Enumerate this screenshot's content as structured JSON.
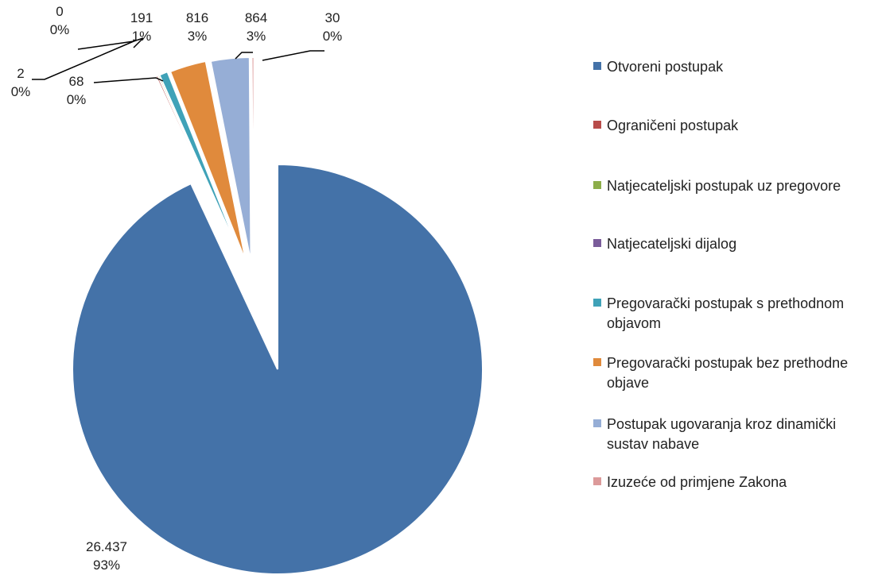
{
  "chart_data": {
    "type": "pie",
    "exploded": true,
    "legend_position": "right",
    "categories": [
      "Otvoreni postupak",
      "Ograničeni postupak",
      "Natjecateljski postupak uz pregovore",
      "Natjecateljski dijalog",
      "Pregovarački postupak s prethodnom objavom",
      "Pregovarački postupak bez prethodne objave",
      "Postupak ugovaranja kroz dinamički sustav nabave",
      "Izuzeće od primjene Zakona"
    ],
    "values": [
      26437,
      68,
      2,
      0,
      191,
      816,
      864,
      30
    ],
    "value_labels": [
      "26.437",
      "68",
      "2",
      "0",
      "191",
      "816",
      "864",
      "30"
    ],
    "percent_labels": [
      "93%",
      "0%",
      "0%",
      "0%",
      "1%",
      "3%",
      "3%",
      "0%"
    ],
    "colors": [
      "#4472A8",
      "#B84C4A",
      "#8DAE4A",
      "#7A5C9A",
      "#3FA2B8",
      "#E08A3C",
      "#96AED6",
      "#DC9A9A"
    ]
  }
}
